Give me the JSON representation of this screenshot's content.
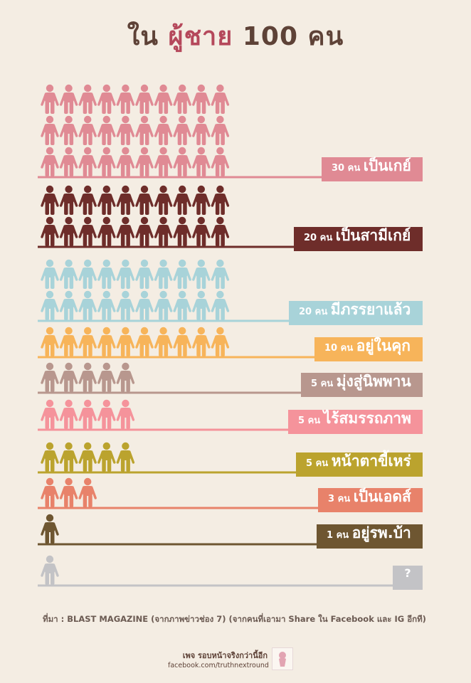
{
  "title": {
    "prefix": "ใน",
    "highlight": "ผู้ชาย",
    "suffix": "100 คน"
  },
  "chart_data": {
    "type": "pictograph",
    "total": 100,
    "unit": "คน",
    "series": [
      {
        "count_label": "30 คน",
        "label": "เป็นเกย์",
        "value": 30,
        "color": "#e08a94"
      },
      {
        "count_label": "20 คน",
        "label": "เป็นสามีเกย์",
        "value": 20,
        "color": "#6e2d2a"
      },
      {
        "count_label": "20 คน",
        "label": "มีภรรยาแล้ว",
        "value": 20,
        "color": "#a8d3d9"
      },
      {
        "count_label": "10 คน",
        "label": "อยู่ในคุก",
        "value": 10,
        "color": "#f7b45a"
      },
      {
        "count_label": "5 คน",
        "label": "มุ่งสู่นิพพาน",
        "value": 5,
        "color": "#b8978e"
      },
      {
        "count_label": "5 คน",
        "label": "ไร้สมรรถภาพ",
        "value": 5,
        "color": "#f5939b"
      },
      {
        "count_label": "5 คน",
        "label": "หน้าตาขี้เหร่",
        "value": 5,
        "color": "#bba32e"
      },
      {
        "count_label": "3 คน",
        "label": "เป็นเอดส์",
        "value": 3,
        "color": "#e8826a"
      },
      {
        "count_label": "1 คน",
        "label": "อยู่รพ.บ้า",
        "value": 1,
        "color": "#6e5631"
      },
      {
        "count_label": "",
        "label": "?",
        "value": 1,
        "color": "#c3c3c6"
      }
    ]
  },
  "footer": {
    "source": "ที่มา : BLAST MAGAZINE (จากภาพข่าวช่อง 7) (จากคนที่เอามา Share ใน Facebook และ IG อีกที)",
    "credit_line1": "เพจ รอบหน้าจริงกว่านี้อีก",
    "credit_line2": "facebook.com/truthnextround"
  }
}
